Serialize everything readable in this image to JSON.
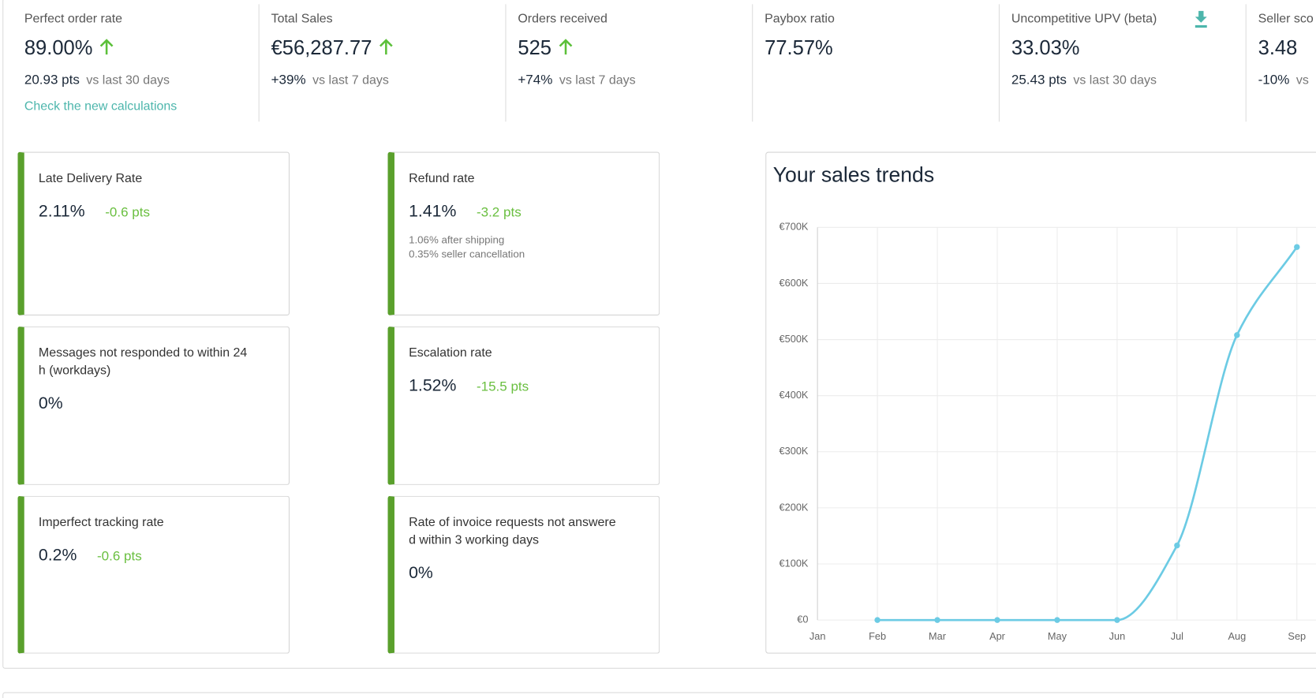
{
  "kpis": [
    {
      "label": "Perfect order rate",
      "value": "89.00%",
      "trend": "up",
      "sub_value": "20.93 pts",
      "sub_label": "vs last 30 days",
      "link": "Check the new calculations"
    },
    {
      "label": "Total Sales",
      "value": "€56,287.77",
      "trend": "up",
      "sub_value": "+39%",
      "sub_label": "vs last 7 days"
    },
    {
      "label": "Orders received",
      "value": "525",
      "trend": "up",
      "sub_value": "+74%",
      "sub_label": "vs last 7 days"
    },
    {
      "label": "Paybox ratio",
      "value": "77.57%"
    },
    {
      "label": "Uncompetitive UPV (beta)",
      "value": "33.03%",
      "sub_value": "25.43 pts",
      "sub_label": "vs last 30 days"
    },
    {
      "label": "Seller sco",
      "value": "3.48",
      "sub_value": "-10%",
      "sub_label": "vs"
    }
  ],
  "cards": [
    {
      "title": "Late Delivery Rate",
      "value": "2.11%",
      "delta": "-0.6 pts"
    },
    {
      "title": "Messages not responded to within 24h (workdays)",
      "value": "0%"
    },
    {
      "title": "Imperfect tracking rate",
      "value": "0.2%",
      "delta": "-0.6 pts"
    },
    {
      "title": "Refund rate",
      "value": "1.41%",
      "delta": "-3.2 pts",
      "notes": [
        "1.06% after shipping",
        "0.35% seller cancellation"
      ]
    },
    {
      "title": "Escalation rate",
      "value": "1.52%",
      "delta": "-15.5 pts"
    },
    {
      "title": "Rate of invoice requests not answered within 3 working days",
      "value": "0%"
    }
  ],
  "chart_data": {
    "type": "line",
    "title": "Your sales trends",
    "categories": [
      "Jan",
      "Feb",
      "Mar",
      "Apr",
      "May",
      "Jun",
      "Jul",
      "Aug",
      "Sep"
    ],
    "values": [
      null,
      0,
      0,
      0,
      0,
      0,
      133000,
      508000,
      665000
    ],
    "color": "#6ccbe4",
    "ylim": [
      0,
      700000
    ],
    "yticks": [
      {
        "value": 0,
        "label": "€0"
      },
      {
        "value": 100000,
        "label": "€100K"
      },
      {
        "value": 200000,
        "label": "€200K"
      },
      {
        "value": 300000,
        "label": "€300K"
      },
      {
        "value": 400000,
        "label": "€400K"
      },
      {
        "value": 500000,
        "label": "€500K"
      },
      {
        "value": 600000,
        "label": "€600K"
      },
      {
        "value": 700000,
        "label": "€700K"
      }
    ],
    "grid": true
  }
}
